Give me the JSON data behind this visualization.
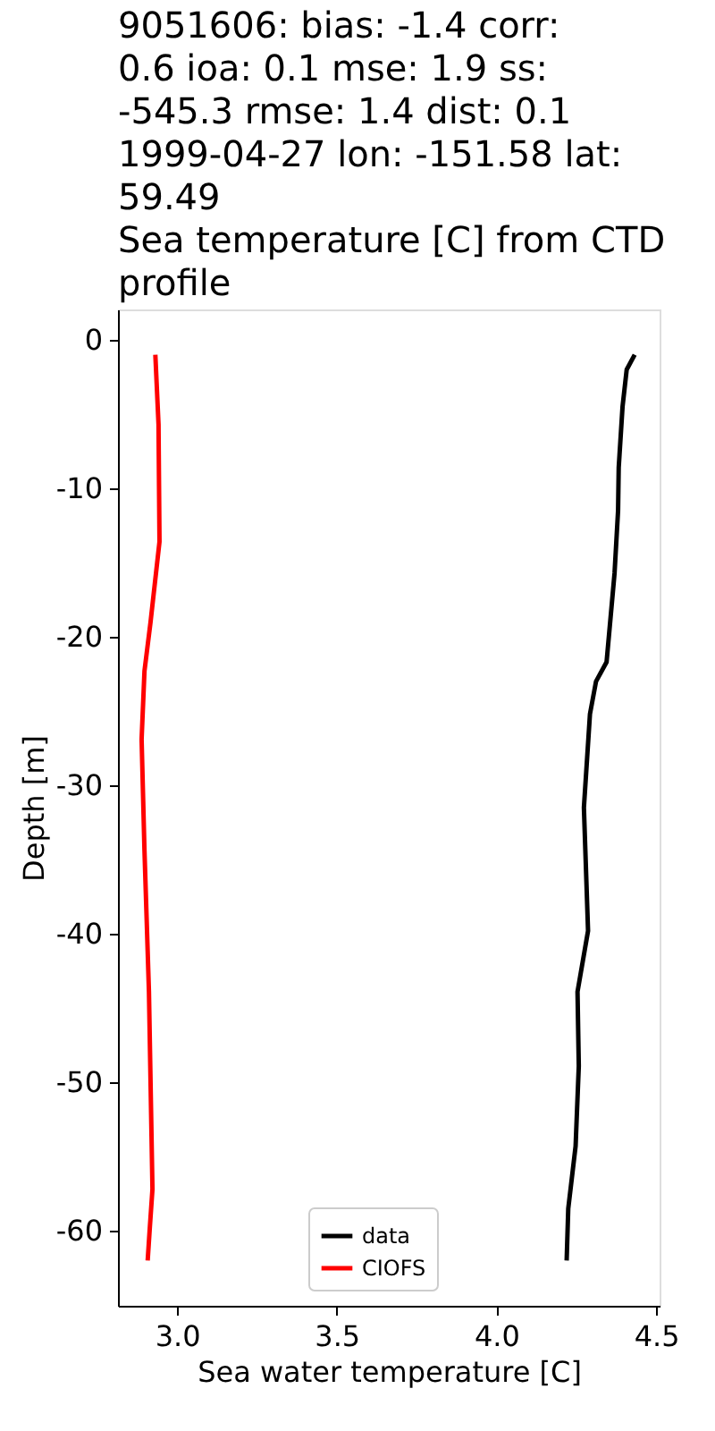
{
  "chart_data": {
    "type": "line",
    "title": "9051606: bias: -1.4  corr: 0.6  ioa: 0.1  mse: 1.9  ss: -545.3  rmse: 1.4  dist: 0.1\n1999-04-27 lon: -151.58 lat: 59.49\nSea temperature [C] from CTD profile",
    "xlabel": "Sea water temperature [C]",
    "ylabel": "Depth [m]",
    "series": [
      {
        "name": "data",
        "color": "#000000",
        "x": [
          4.433,
          4.408,
          4.395,
          4.383,
          4.381,
          4.37,
          4.345,
          4.312,
          4.293,
          4.274,
          4.287,
          4.254,
          4.258,
          4.248,
          4.225,
          4.22
        ],
        "values": [
          -1,
          -2,
          -4.5,
          -8.6,
          -11.5,
          -15.7,
          -21.7,
          -23,
          -25.2,
          -31.5,
          -39.8,
          -43.9,
          -48.9,
          -54.3,
          -58.5,
          -62
        ]
      },
      {
        "name": "CIOFS",
        "color": "#ff0000",
        "x": [
          2.932,
          2.942,
          2.945,
          2.917,
          2.898,
          2.889,
          2.898,
          2.912,
          2.923,
          2.915,
          2.908
        ],
        "values": [
          -1,
          -5.7,
          -13.6,
          -19,
          -22.3,
          -26.9,
          -34.4,
          -43.9,
          -57.2,
          -59.7,
          -62
        ]
      }
    ],
    "xlim": [
      2.815,
      4.511
    ],
    "ylim": [
      -65.05,
      2.05
    ],
    "xticks": [
      {
        "value": 3,
        "label": "3.0"
      },
      {
        "value": 3.5,
        "label": "3.5"
      },
      {
        "value": 4,
        "label": "4.0"
      },
      {
        "value": 4.5,
        "label": "4.5"
      }
    ],
    "yticks": [
      -60,
      -50,
      -40,
      -30,
      -20,
      -10,
      0
    ],
    "grid": false,
    "legend": "bottom",
    "marker": "none",
    "line_style": "solid"
  }
}
